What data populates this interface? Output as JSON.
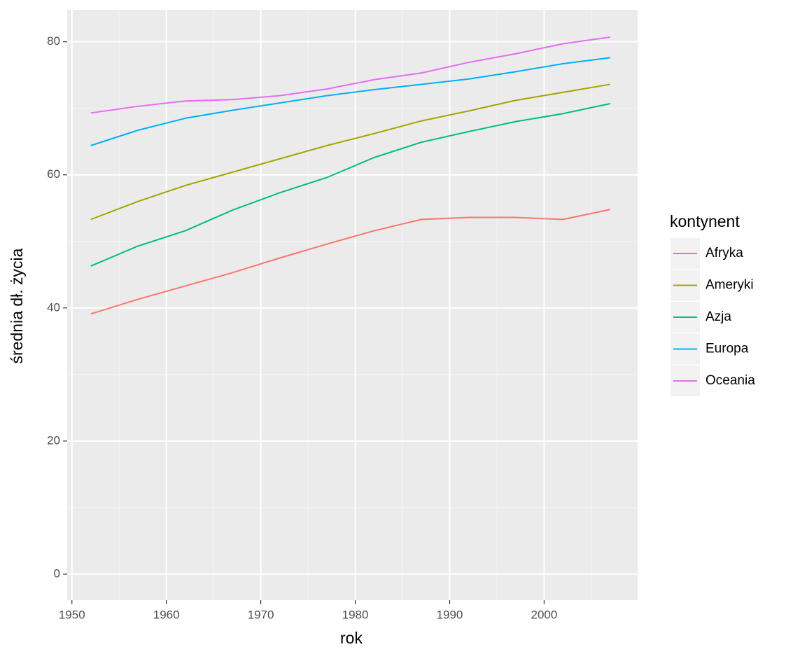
{
  "chart_data": {
    "type": "line",
    "x_label": "rok",
    "y_label": "średnia dł. życia",
    "legend_title": "kontynent",
    "x": [
      1952,
      1957,
      1962,
      1967,
      1972,
      1977,
      1982,
      1987,
      1992,
      1997,
      2002,
      2007
    ],
    "series": [
      {
        "name": "Afryka",
        "color": "#F8766D",
        "values": [
          39.1,
          41.3,
          43.3,
          45.3,
          47.5,
          49.6,
          51.6,
          53.3,
          53.6,
          53.6,
          53.3,
          54.8
        ]
      },
      {
        "name": "Ameryki",
        "color": "#A3A500",
        "values": [
          53.3,
          56.0,
          58.4,
          60.4,
          62.4,
          64.4,
          66.2,
          68.1,
          69.6,
          71.2,
          72.4,
          73.6
        ]
      },
      {
        "name": "Azja",
        "color": "#00BF7D",
        "values": [
          46.3,
          49.3,
          51.6,
          54.7,
          57.3,
          59.6,
          62.6,
          64.9,
          66.5,
          68.0,
          69.2,
          70.7
        ]
      },
      {
        "name": "Europa",
        "color": "#00B0F6",
        "values": [
          64.4,
          66.7,
          68.5,
          69.7,
          70.8,
          71.9,
          72.8,
          73.6,
          74.4,
          75.5,
          76.7,
          77.6
        ]
      },
      {
        "name": "Oceania",
        "color": "#E76BF3",
        "values": [
          69.3,
          70.3,
          71.1,
          71.3,
          71.9,
          72.9,
          74.3,
          75.3,
          76.9,
          78.2,
          79.7,
          80.7
        ]
      }
    ],
    "xlim": [
      1949.5,
      2009.9
    ],
    "xticks": [
      1950,
      1960,
      1970,
      1980,
      1990,
      2000
    ],
    "ylim": [
      -3.9,
      84.8
    ],
    "yticks": [
      0,
      20,
      40,
      60,
      80
    ],
    "grid": true,
    "legend": "right"
  }
}
